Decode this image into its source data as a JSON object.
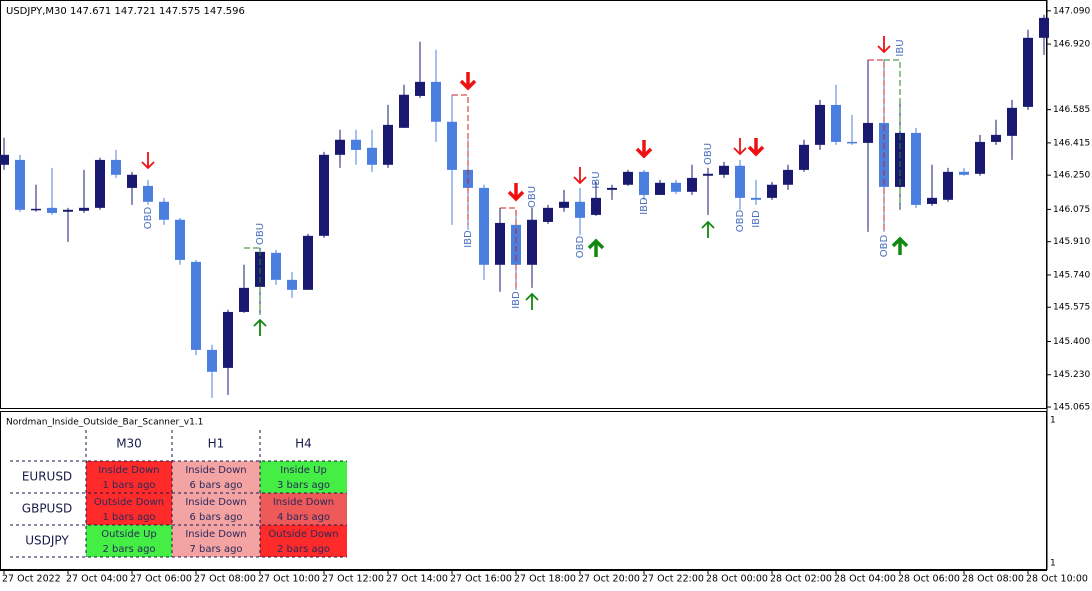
{
  "chart_data": {
    "type": "candlestick",
    "title": "USDJPY,M30 147.671 147.721 147.575 147.596",
    "up_color": "#191970",
    "down_color": "#4a7fe0",
    "categories": [
      "27 Oct 2022",
      null,
      null,
      null,
      "27 Oct 04:00",
      null,
      null,
      null,
      "27 Oct 06:00",
      null,
      null,
      null,
      "27 Oct 08:00",
      null,
      null,
      null,
      "27 Oct 10:00",
      null,
      null,
      null,
      "27 Oct 12:00",
      null,
      null,
      null,
      "27 Oct 14:00",
      null,
      null,
      null,
      "27 Oct 16:00",
      null,
      null,
      null,
      "27 Oct 18:00",
      null,
      null,
      null,
      "27 Oct 20:00",
      null,
      null,
      null,
      "27 Oct 22:00",
      null,
      null,
      null,
      "28 Oct 00:00",
      null,
      null,
      null,
      "28 Oct 02:00",
      null,
      null,
      null,
      "28 Oct 04:00",
      null,
      null,
      null,
      "28 Oct 06:00",
      null,
      null,
      null,
      "28 Oct 08:00",
      null,
      null,
      null,
      "28 Oct 10:00",
      null
    ],
    "open": [
      146.303,
      146.328,
      146.078,
      146.083,
      146.063,
      146.068,
      146.083,
      146.328,
      146.185,
      146.195,
      146.114,
      146.022,
      145.807,
      145.357,
      145.265,
      145.551,
      145.679,
      145.853,
      145.715,
      145.664,
      145.94,
      146.354,
      146.431,
      146.39,
      146.303,
      146.492,
      146.655,
      146.727,
      146.523,
      146.277,
      146.185,
      145.792,
      145.996,
      145.792,
      146.011,
      146.083,
      146.114,
      146.047,
      146.175,
      146.201,
      146.267,
      146.149,
      146.211,
      146.165,
      146.247,
      146.252,
      146.298,
      146.134,
      146.134,
      146.201,
      146.277,
      146.405,
      146.609,
      146.42,
      146.415,
      146.517,
      146.19,
      146.466,
      146.103,
      146.124,
      146.267,
      146.257,
      146.42,
      146.451,
      146.599,
      146.952
    ],
    "high": [
      146.441,
      146.354,
      146.201,
      146.287,
      146.083,
      146.277,
      146.339,
      146.379,
      146.267,
      146.226,
      146.134,
      146.032,
      145.817,
      145.383,
      145.562,
      145.792,
      145.879,
      145.868,
      145.756,
      145.95,
      146.369,
      146.482,
      146.482,
      146.482,
      146.609,
      146.712,
      146.932,
      146.891,
      146.661,
      146.431,
      146.201,
      146.083,
      146.073,
      146.083,
      146.098,
      146.175,
      146.185,
      146.216,
      146.201,
      146.277,
      146.277,
      146.226,
      146.226,
      146.303,
      146.287,
      146.318,
      146.328,
      146.226,
      146.216,
      146.303,
      146.431,
      146.635,
      146.712,
      146.558,
      146.84,
      146.84,
      146.635,
      146.492,
      146.303,
      146.287,
      146.287,
      146.456,
      146.533,
      146.635,
      146.993,
      147.07
    ],
    "low": [
      146.277,
      146.063,
      146.063,
      146.047,
      145.909,
      146.057,
      146.073,
      146.236,
      146.098,
      146.098,
      145.996,
      145.792,
      145.331,
      145.112,
      145.127,
      145.546,
      145.536,
      145.689,
      145.623,
      145.664,
      145.93,
      146.287,
      146.303,
      146.267,
      146.287,
      146.492,
      146.645,
      146.42,
      145.996,
      145.971,
      145.715,
      145.654,
      145.664,
      145.674,
      146.001,
      146.063,
      145.945,
      146.042,
      146.124,
      146.195,
      146.124,
      146.149,
      146.154,
      146.149,
      146.047,
      146.236,
      146.073,
      146.098,
      146.124,
      146.175,
      146.267,
      146.379,
      146.405,
      146.405,
      145.96,
      145.96,
      146.073,
      146.083,
      146.093,
      146.114,
      146.247,
      146.247,
      146.405,
      146.328,
      146.584,
      146.865
    ],
    "close": [
      146.354,
      146.073,
      146.078,
      146.057,
      146.073,
      146.083,
      146.328,
      146.252,
      146.252,
      146.114,
      146.022,
      145.817,
      145.357,
      145.245,
      145.551,
      145.674,
      145.858,
      145.715,
      145.664,
      145.94,
      146.354,
      146.431,
      146.379,
      146.303,
      146.507,
      146.661,
      146.727,
      146.523,
      146.277,
      146.185,
      145.792,
      146.006,
      145.792,
      146.022,
      146.083,
      146.114,
      146.032,
      146.134,
      146.185,
      146.267,
      146.149,
      146.211,
      146.165,
      146.236,
      146.257,
      146.298,
      146.134,
      146.124,
      146.201,
      146.277,
      146.405,
      146.609,
      146.42,
      146.415,
      146.517,
      146.19,
      146.466,
      146.098,
      146.134,
      146.267,
      146.252,
      146.42,
      146.456,
      146.594,
      146.952,
      147.054
    ],
    "ylim": [
      145.06,
      147.13
    ],
    "yticks": [
      {
        "value": 147.09,
        "label": "147.090"
      },
      {
        "value": 146.92,
        "label": "146.920"
      },
      {
        "value": 146.585,
        "label": "146.585"
      },
      {
        "value": 146.415,
        "label": "146.415"
      },
      {
        "value": 146.25,
        "label": "146.250"
      },
      {
        "value": 146.075,
        "label": "146.075"
      },
      {
        "value": 145.91,
        "label": "145.910"
      },
      {
        "value": 145.74,
        "label": "145.740"
      },
      {
        "value": 145.575,
        "label": "145.575"
      },
      {
        "value": 145.4,
        "label": "145.400"
      },
      {
        "value": 145.23,
        "label": "145.230"
      },
      {
        "value": 145.065,
        "label": "145.065"
      }
    ],
    "annotations": [
      "OBD",
      "OBU",
      "IBD",
      "IBD",
      "OBU",
      "OBD",
      "IBU",
      "IBD",
      "OBU",
      "OBD",
      "IBD",
      "OBD",
      "IBU"
    ],
    "annotation_color": "#4a6fbf"
  },
  "indicator": {
    "title": "Nordman_Inside_Outside_Bar_Scanner_v1.1",
    "scale_labels": [
      "1",
      "1"
    ],
    "columns": [
      "M30",
      "H1",
      "H4"
    ],
    "rows": [
      {
        "symbol": "EURUSD",
        "cells": [
          {
            "state": "Inside Down",
            "ago": "1 bars ago",
            "color": "#ff2a2a"
          },
          {
            "state": "Inside Down",
            "ago": "6 bars ago",
            "color": "#f4a3a3"
          },
          {
            "state": "Inside Up",
            "ago": "3 bars ago",
            "color": "#44ee44"
          }
        ]
      },
      {
        "symbol": "GBPUSD",
        "cells": [
          {
            "state": "Outside Down",
            "ago": "1 bars ago",
            "color": "#ff2a2a"
          },
          {
            "state": "Inside Down",
            "ago": "6 bars ago",
            "color": "#f4a3a3"
          },
          {
            "state": "Inside Down",
            "ago": "4 bars ago",
            "color": "#ee5a5a"
          }
        ]
      },
      {
        "symbol": "USDJPY",
        "cells": [
          {
            "state": "Outside Up",
            "ago": "2 bars ago",
            "color": "#44ee44"
          },
          {
            "state": "Inside Down",
            "ago": "7 bars ago",
            "color": "#f4a3a3"
          },
          {
            "state": "Outside Down",
            "ago": "2 bars ago",
            "color": "#ff2a2a"
          }
        ]
      }
    ]
  }
}
